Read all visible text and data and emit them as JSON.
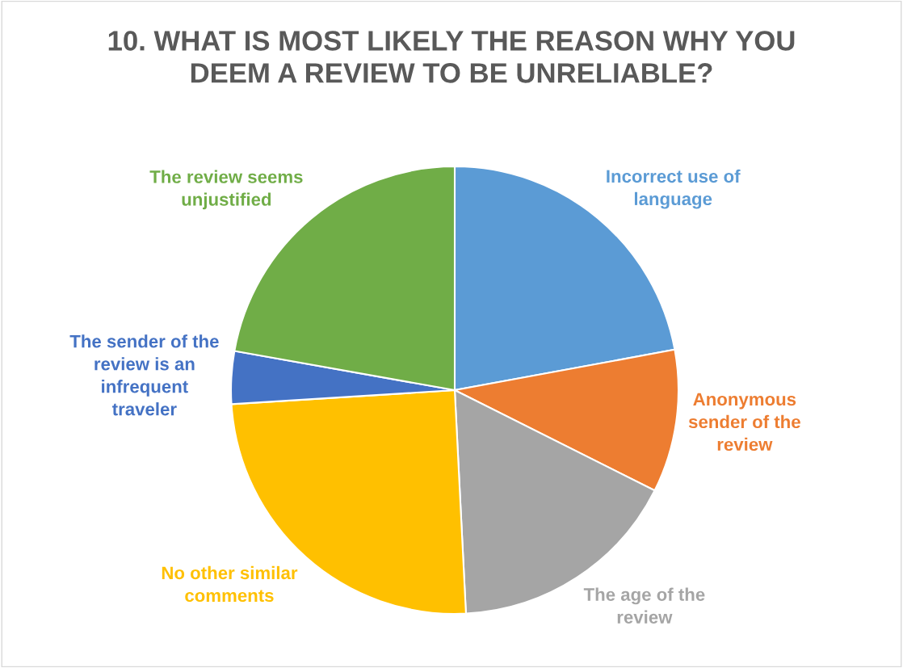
{
  "chart_data": {
    "type": "pie",
    "title": "10. WHAT IS MOST LIKELY THE REASON WHY YOU\nDEEM A REVIEW TO BE UNRELIABLE?",
    "categories": [
      "Incorrect use of\nlanguage",
      "Anonymous\nsender of the\nreview",
      "The age of the\nreview",
      "No other similar\ncomments",
      "The sender of the\nreview is an\ninfrequent\ntraveler",
      "The review seems\nunjustified"
    ],
    "values": [
      22.1,
      10.3,
      16.8,
      24.8,
      3.8,
      22.2
    ],
    "colors": [
      "#5b9bd5",
      "#ed7d31",
      "#a5a5a5",
      "#ffc000",
      "#4472c4",
      "#70ad47"
    ],
    "legend": false
  }
}
